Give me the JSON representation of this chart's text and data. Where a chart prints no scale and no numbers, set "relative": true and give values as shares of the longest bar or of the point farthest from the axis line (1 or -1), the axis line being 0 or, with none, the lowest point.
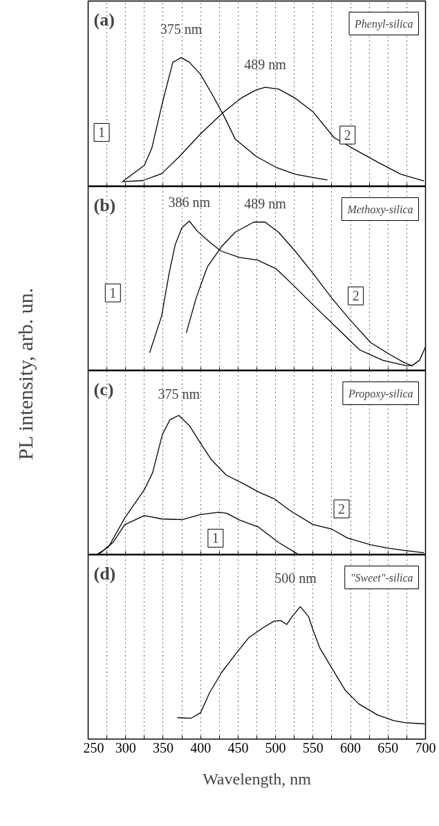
{
  "chart_data": [
    {
      "type": "line",
      "title": "(a)",
      "subtitle": "Phenyl-silica",
      "ylabel": "PL intensity, arb. un.",
      "relative": true,
      "grid": "x",
      "tick_labels": false,
      "xlim": [
        250,
        700
      ],
      "xticks": [
        250,
        {
          "value": 275,
          "label": null
        },
        300,
        {
          "value": 325,
          "label": null
        },
        350,
        {
          "value": 375,
          "label": null
        },
        400,
        {
          "value": 425,
          "label": null
        },
        450,
        {
          "value": 475,
          "label": null
        },
        500,
        {
          "value": 525,
          "label": null
        },
        550,
        {
          "value": 575,
          "label": null
        },
        600,
        {
          "value": 625,
          "label": null
        },
        650,
        {
          "value": 675,
          "label": null
        },
        700
      ],
      "annotations": [
        {
          "text": "375 nm",
          "x": 374,
          "y": 1.0
        },
        {
          "text": "489 nm",
          "x": 486,
          "y": 0.77
        }
      ],
      "series": [
        {
          "name": "1",
          "color": "#000000",
          "x": [
            295,
            325,
            335,
            349,
            363,
            374,
            385,
            400,
            415,
            431,
            446,
            474,
            501,
            526,
            550,
            569
          ],
          "values": [
            0.035,
            0.165,
            0.3,
            0.65,
            0.965,
            1.0,
            0.965,
            0.87,
            0.72,
            0.55,
            0.37,
            0.235,
            0.148,
            0.096,
            0.07,
            0.052
          ]
        },
        {
          "name": "2",
          "color": "#000000",
          "x": [
            297,
            323,
            348,
            372,
            400,
            431,
            455,
            474,
            486,
            504,
            526,
            550,
            578,
            606,
            636,
            667,
            698
          ],
          "values": [
            0.038,
            0.047,
            0.1,
            0.235,
            0.41,
            0.58,
            0.69,
            0.75,
            0.77,
            0.757,
            0.687,
            0.58,
            0.38,
            0.287,
            0.19,
            0.096,
            0.043
          ]
        }
      ]
    },
    {
      "type": "line",
      "title": "(b)",
      "subtitle": "Methoxy-silica",
      "relative": true,
      "grid": "x",
      "tick_labels": false,
      "xlim": [
        250,
        700
      ],
      "xticks": [
        250,
        {
          "value": 275,
          "label": null
        },
        300,
        {
          "value": 325,
          "label": null
        },
        350,
        {
          "value": 375,
          "label": null
        },
        400,
        {
          "value": 425,
          "label": null
        },
        450,
        {
          "value": 475,
          "label": null
        },
        500,
        {
          "value": 525,
          "label": null
        },
        550,
        {
          "value": 575,
          "label": null
        },
        600,
        {
          "value": 625,
          "label": null
        },
        650,
        {
          "value": 675,
          "label": null
        },
        700
      ],
      "annotations": [
        {
          "text": "386 nm",
          "x": 385,
          "y": 1.0
        },
        {
          "text": "489 nm",
          "x": 486,
          "y": 0.993
        }
      ],
      "series": [
        {
          "name": "1",
          "color": "#000000",
          "x": [
            332,
            348,
            358,
            366,
            375,
            385,
            396,
            412,
            427,
            452,
            476,
            501,
            526,
            550,
            581,
            612,
            643,
            673,
            682,
            692,
            700
          ],
          "values": [
            0.12,
            0.366,
            0.65,
            0.84,
            0.955,
            1.0,
            0.93,
            0.86,
            0.8,
            0.757,
            0.739,
            0.68,
            0.56,
            0.44,
            0.29,
            0.14,
            0.07,
            0.035,
            0.034,
            0.07,
            0.16
          ]
        },
        {
          "name": "2",
          "color": "#000000",
          "x": [
            381,
            394,
            409,
            428,
            446,
            471,
            486,
            504,
            526,
            550,
            575,
            600,
            627,
            652,
            673,
            682
          ],
          "values": [
            0.254,
            0.485,
            0.694,
            0.83,
            0.925,
            0.993,
            0.993,
            0.925,
            0.8,
            0.65,
            0.485,
            0.336,
            0.187,
            0.11,
            0.05,
            0.034
          ]
        }
      ]
    },
    {
      "type": "line",
      "title": "(c)",
      "subtitle": "Propoxy-silica",
      "relative": true,
      "grid": "x",
      "tick_labels": false,
      "xlim": [
        250,
        700
      ],
      "xticks": [
        250,
        {
          "value": 275,
          "label": null
        },
        300,
        {
          "value": 325,
          "label": null
        },
        350,
        {
          "value": 375,
          "label": null
        },
        400,
        {
          "value": 425,
          "label": null
        },
        450,
        {
          "value": 475,
          "label": null
        },
        500,
        {
          "value": 525,
          "label": null
        },
        550,
        {
          "value": 575,
          "label": null
        },
        600,
        {
          "value": 625,
          "label": null
        },
        650,
        {
          "value": 675,
          "label": null
        },
        700
      ],
      "annotations": [
        {
          "text": "375 nm",
          "x": 371,
          "y": 1.0
        }
      ],
      "series": [
        {
          "name": "1",
          "color": "#000000",
          "x": [
            265,
            283,
            299,
            325,
            348,
            375,
            400,
            424,
            435,
            452,
            477,
            504,
            529
          ],
          "values": [
            0.008,
            0.089,
            0.218,
            0.282,
            0.258,
            0.253,
            0.29,
            0.306,
            0.298,
            0.25,
            0.2,
            0.089,
            0.008
          ]
        },
        {
          "name": "2",
          "color": "#000000",
          "x": [
            262,
            277,
            299,
            325,
            336,
            349,
            359,
            371,
            385,
            400,
            414,
            434,
            458,
            477,
            498,
            520,
            550,
            575,
            596,
            627,
            651,
            673,
            698
          ],
          "values": [
            0.005,
            0.056,
            0.266,
            0.468,
            0.59,
            0.863,
            0.968,
            1.0,
            0.927,
            0.8,
            0.685,
            0.573,
            0.508,
            0.452,
            0.403,
            0.315,
            0.218,
            0.185,
            0.121,
            0.073,
            0.048,
            0.032,
            0.016
          ]
        }
      ]
    },
    {
      "type": "line",
      "title": "(d)",
      "subtitle": "\"Sweet\"-silica",
      "xlabel": "Wavelength, nm",
      "relative": true,
      "grid": "x",
      "tick_labels": "x",
      "xlim": [
        250,
        700
      ],
      "xticks": [
        250,
        {
          "value": 275,
          "label": null
        },
        300,
        {
          "value": 325,
          "label": null
        },
        350,
        {
          "value": 375,
          "label": null
        },
        400,
        {
          "value": 425,
          "label": null
        },
        450,
        {
          "value": 475,
          "label": null
        },
        500,
        {
          "value": 525,
          "label": null
        },
        550,
        {
          "value": 575,
          "label": null
        },
        600,
        {
          "value": 625,
          "label": null
        },
        650,
        {
          "value": 675,
          "label": null
        },
        700
      ],
      "annotations": [
        "500 nm"
      ],
      "series": [
        {
          "color": "#000000",
          "x": [
            369,
            387,
            400,
            412,
            428,
            446,
            464,
            483,
            498,
            507,
            515,
            522,
            533,
            544,
            550,
            559,
            574,
            593,
            611,
            636,
            657,
            673,
            699
          ],
          "values": [
            0.162,
            0.157,
            0.199,
            0.35,
            0.503,
            0.637,
            0.764,
            0.84,
            0.89,
            0.894,
            0.865,
            0.924,
            1.0,
            0.924,
            0.823,
            0.688,
            0.545,
            0.368,
            0.266,
            0.182,
            0.14,
            0.123,
            0.115
          ]
        }
      ]
    }
  ]
}
